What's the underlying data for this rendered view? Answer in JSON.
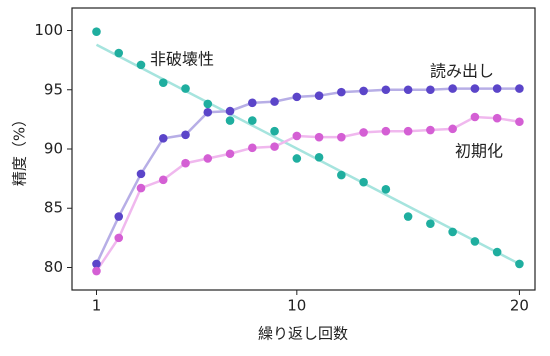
{
  "chart_data": {
    "type": "scatter",
    "x_label": "繰り返し回数",
    "y_label": "精度（%）",
    "x": [
      1,
      2,
      3,
      4,
      5,
      6,
      7,
      8,
      9,
      10,
      11,
      12,
      13,
      14,
      15,
      16,
      17,
      18,
      19,
      20
    ],
    "xlim": [
      -0.1,
      20.7
    ],
    "xticks": [
      1,
      10,
      20
    ],
    "ylim": [
      78.1,
      101.9
    ],
    "yticks": [
      80,
      85,
      90,
      95,
      100
    ],
    "series": [
      {
        "name": "非破壊性",
        "color": "#1fae9f",
        "line_color": "#a6e4de",
        "connect": false,
        "values": [
          99.9,
          98.1,
          97.1,
          95.6,
          95.1,
          93.8,
          92.4,
          92.4,
          91.5,
          89.2,
          89.3,
          87.8,
          87.2,
          86.6,
          84.3,
          83.7,
          83.0,
          82.2,
          81.3,
          80.3
        ],
        "fit": {
          "x": [
            1,
            20
          ],
          "values": [
            98.8,
            80.3
          ]
        }
      },
      {
        "name": "読み出し",
        "color": "#5b45c9",
        "line_color": "#b7aee6",
        "connect": true,
        "values": [
          80.3,
          84.3,
          87.9,
          90.9,
          91.2,
          93.1,
          93.2,
          93.9,
          94.0,
          94.4,
          94.5,
          94.8,
          94.9,
          95.0,
          95.0,
          95.0,
          95.1,
          95.1,
          95.1,
          95.1
        ]
      },
      {
        "name": "初期化",
        "color": "#d45fd4",
        "line_color": "#f0b8ee",
        "connect": true,
        "values": [
          79.7,
          82.5,
          86.7,
          87.4,
          88.8,
          89.2,
          89.6,
          90.1,
          90.2,
          91.1,
          91.0,
          91.0,
          91.4,
          91.5,
          91.5,
          91.6,
          91.7,
          92.7,
          92.6,
          92.3
        ]
      }
    ]
  }
}
